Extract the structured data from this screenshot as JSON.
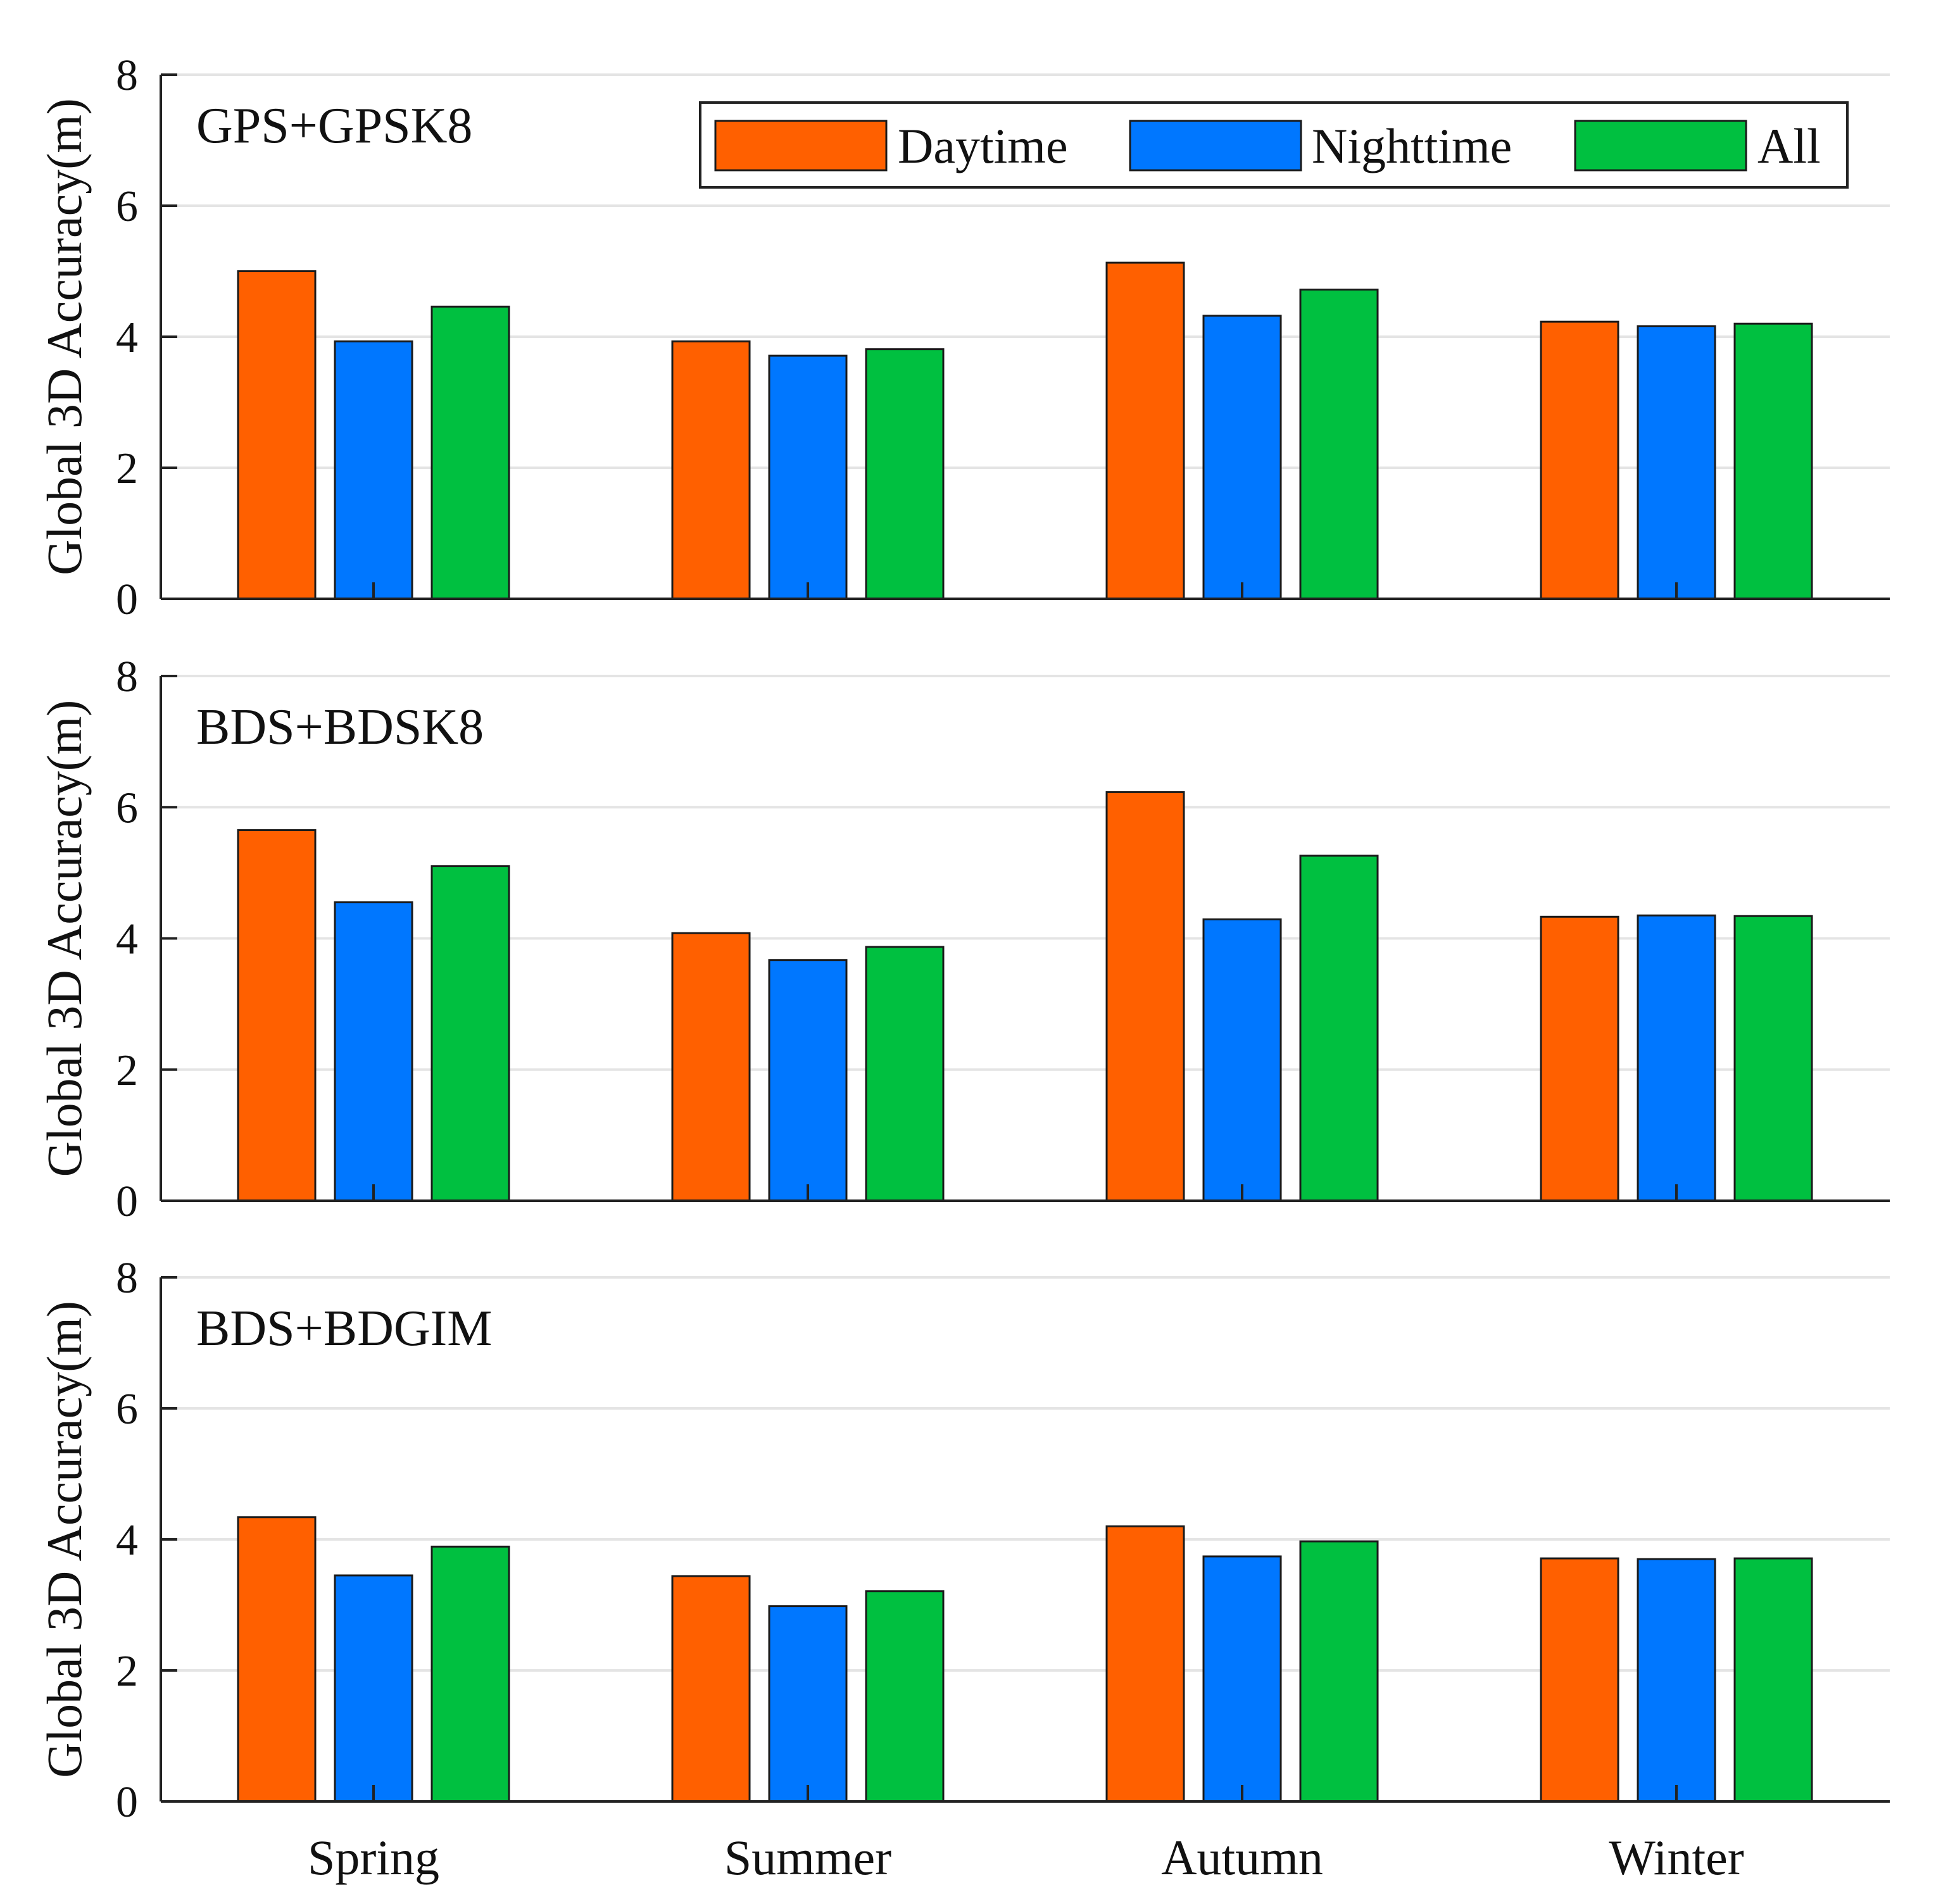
{
  "chart_data": [
    {
      "type": "bar",
      "panel_label": "GPS+GPSK8",
      "categories": [
        "Spring",
        "Summer",
        "Autumn",
        "Winter"
      ],
      "series": [
        {
          "name": "Daytime",
          "values": [
            5.0,
            3.93,
            5.13,
            4.23
          ]
        },
        {
          "name": "Nighttime",
          "values": [
            3.93,
            3.71,
            4.32,
            4.16
          ]
        },
        {
          "name": "All",
          "values": [
            4.46,
            3.81,
            4.72,
            4.2
          ]
        }
      ],
      "ylabel": "Global 3D Accuracy(m)",
      "ylim": [
        0,
        8
      ],
      "yticks": [
        "0",
        "2",
        "4",
        "6",
        "8"
      ],
      "grid": true,
      "legend": {
        "position": "top-right",
        "entries": [
          "Daytime",
          "Nighttime",
          "All"
        ]
      }
    },
    {
      "type": "bar",
      "panel_label": "BDS+BDSK8",
      "categories": [
        "Spring",
        "Summer",
        "Autumn",
        "Winter"
      ],
      "series": [
        {
          "name": "Daytime",
          "values": [
            5.65,
            4.08,
            6.23,
            4.33
          ]
        },
        {
          "name": "Nighttime",
          "values": [
            4.55,
            3.67,
            4.29,
            4.35
          ]
        },
        {
          "name": "All",
          "values": [
            5.1,
            3.87,
            5.26,
            4.34
          ]
        }
      ],
      "ylabel": "Global 3D Accuracy(m)",
      "ylim": [
        0,
        8
      ],
      "yticks": [
        "0",
        "2",
        "4",
        "6",
        "8"
      ],
      "grid": true
    },
    {
      "type": "bar",
      "panel_label": "BDS+BDGIM",
      "categories": [
        "Spring",
        "Summer",
        "Autumn",
        "Winter"
      ],
      "series": [
        {
          "name": "Daytime",
          "values": [
            4.34,
            3.44,
            4.2,
            3.71
          ]
        },
        {
          "name": "Nighttime",
          "values": [
            3.45,
            2.98,
            3.74,
            3.7
          ]
        },
        {
          "name": "All",
          "values": [
            3.89,
            3.21,
            3.97,
            3.71
          ]
        }
      ],
      "ylabel": "Global 3D Accuracy(m)",
      "ylim": [
        0,
        8
      ],
      "yticks": [
        "0",
        "2",
        "4",
        "6",
        "8"
      ],
      "grid": true,
      "xlabel": ""
    }
  ],
  "colors": {
    "Daytime": "#ff6000",
    "Nighttime": "#0077ff",
    "All": "#00c040",
    "grid": "#e4e4e4",
    "axis": "#222222"
  }
}
